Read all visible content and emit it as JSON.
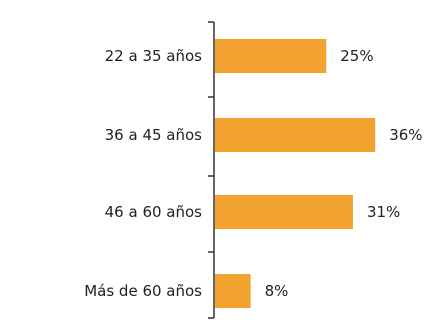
{
  "chart_data": {
    "type": "bar",
    "orientation": "horizontal",
    "categories": [
      "22 a 35 años",
      "36 a 45 años",
      "46 a 60 años",
      "Más de 60 años"
    ],
    "values": [
      25,
      36,
      31,
      8
    ],
    "value_labels": [
      "25%",
      "36%",
      "31%",
      "8%"
    ],
    "unit": "%",
    "title": "",
    "xlabel": "",
    "ylabel": "",
    "xlim": [
      0,
      40
    ],
    "grid": false,
    "legend": "none",
    "bar_color": "#F2A22E",
    "axis_color": "#333333",
    "text_color": "#222222"
  }
}
